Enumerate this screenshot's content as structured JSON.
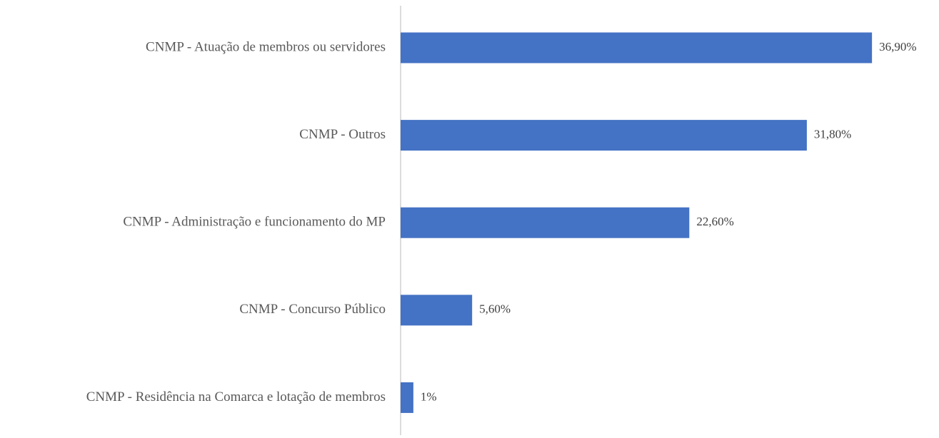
{
  "chart_data": {
    "type": "barh",
    "categories": [
      "CNMP - Atuação de membros ou servidores",
      "CNMP - Outros",
      "CNMP - Administração e funcionamento do MP",
      "CNMP - Concurso Público",
      "CNMP - Residência na Comarca e lotação de membros"
    ],
    "values": [
      36.9,
      31.8,
      22.6,
      5.6,
      1
    ],
    "value_labels": [
      "36,90%",
      "31,80%",
      "22,60%",
      "5,60%",
      "1%"
    ],
    "color": "#4472c4",
    "xlim": [
      0,
      40
    ]
  }
}
